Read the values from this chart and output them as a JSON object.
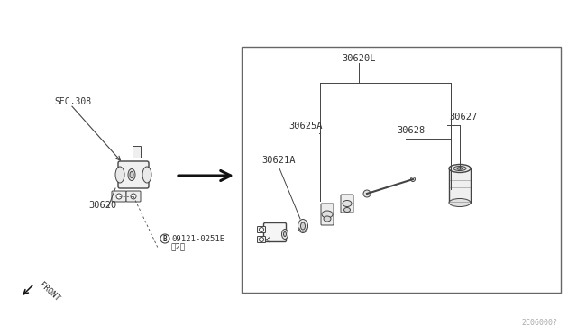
{
  "bg_color": "#ffffff",
  "line_color": "#444444",
  "text_color": "#333333",
  "fig_width": 6.4,
  "fig_height": 3.72,
  "dpi": 100,
  "labels": {
    "SEC308": "SEC.308",
    "30620": "30620",
    "bolt_label_a": "°09121-0251E",
    "bolt_label_b": "（2）",
    "front_label": "FRONT",
    "30620L": "30620L",
    "30625A": "30625A",
    "30621A": "30621A",
    "30628": "30628",
    "30627": "30627",
    "watermark": "2C06000?"
  }
}
